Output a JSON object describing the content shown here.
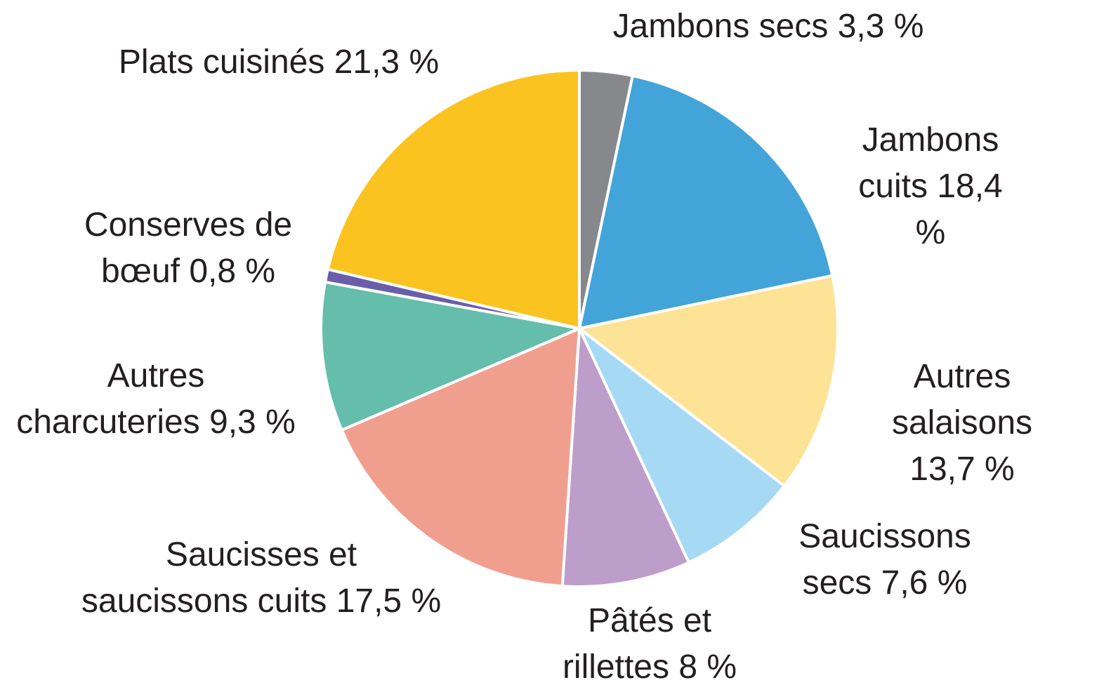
{
  "chart_data": {
    "type": "pie",
    "categories": [
      "Jambons secs",
      "Jambons\ncuits",
      "Autres\nsalaisons",
      "Saucissons\nsecs",
      "Pâtés et\nrillettes",
      "Saucisses et\nsaucissons cuits",
      "Autres\ncharcuteries",
      "Conserves de\nbœuf",
      "Plats cuisinés"
    ],
    "values": [
      3.3,
      18.4,
      13.7,
      7.6,
      8,
      17.5,
      9.3,
      0.8,
      21.3
    ],
    "value_labels": [
      "3,3 %",
      "18,4 %",
      "13,7 %",
      "7,6 %",
      "8 %",
      "17,5 %",
      "9,3 %",
      "0,8 %",
      "21,3 %"
    ],
    "colors": [
      "#87888b",
      "#42a4d8",
      "#fde395",
      "#a6daf4",
      "#bd9dca",
      "#f09f8f",
      "#65bdab",
      "#6a5eab",
      "#fbc320"
    ]
  }
}
